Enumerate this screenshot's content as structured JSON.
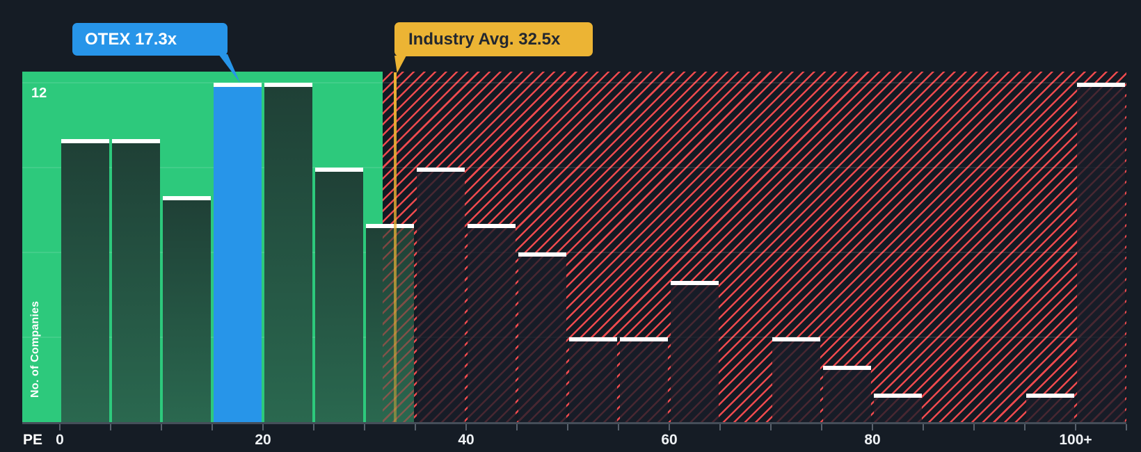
{
  "chart_data": {
    "type": "bar",
    "subtype": "histogram",
    "xlabel": "PE",
    "ylabel": "No. of Companies",
    "y_max_label": "12",
    "y_gridline_values": [
      3,
      6,
      9,
      12
    ],
    "ylim": [
      0,
      12.4
    ],
    "bin_size": 5,
    "grid": "faint horizontal",
    "x_ticks": [
      {
        "label": "0",
        "pe": 0
      },
      {
        "label": "20",
        "pe": 20
      },
      {
        "label": "40",
        "pe": 40
      },
      {
        "label": "60",
        "pe": 60
      },
      {
        "label": "80",
        "pe": 80
      },
      {
        "label": "100+",
        "pe": 100
      }
    ],
    "bins": [
      {
        "range": "0-5",
        "value": 10
      },
      {
        "range": "5-10",
        "value": 10
      },
      {
        "range": "10-15",
        "value": 8
      },
      {
        "range": "15-20",
        "value": 12,
        "highlight": "OTEX"
      },
      {
        "range": "20-25",
        "value": 12
      },
      {
        "range": "25-30",
        "value": 9
      },
      {
        "range": "30-35",
        "value": 7
      },
      {
        "range": "35-40",
        "value": 9
      },
      {
        "range": "40-45",
        "value": 7
      },
      {
        "range": "45-50",
        "value": 6
      },
      {
        "range": "50-55",
        "value": 3
      },
      {
        "range": "55-60",
        "value": 3
      },
      {
        "range": "60-65",
        "value": 5
      },
      {
        "range": "65-70",
        "value": 0
      },
      {
        "range": "70-75",
        "value": 3
      },
      {
        "range": "75-80",
        "value": 2
      },
      {
        "range": "80-85",
        "value": 1
      },
      {
        "range": "85-90",
        "value": 0
      },
      {
        "range": "90-95",
        "value": 0
      },
      {
        "range": "95-100",
        "value": 1
      },
      {
        "range": "100+",
        "value": 12
      }
    ],
    "markers": {
      "otex": {
        "label": "OTEX 17.3x",
        "pe": 17.3
      },
      "industry_avg": {
        "label": "Industry Avg. 32.5x",
        "pe": 32.5
      }
    },
    "zones": {
      "below_average": {
        "range": [
          0,
          32.5
        ],
        "style": "solid green"
      },
      "above_average": {
        "range": [
          32.5,
          105
        ],
        "style": "red diagonal hatch"
      }
    },
    "colors": {
      "background": "#151c25",
      "below_avg_zone": "#2dc97c",
      "bar_green_top": "#1f4036",
      "bar_green_bottom": "#2a684f",
      "otex_bar": "#2795e9",
      "bar_cap": "#ffffff",
      "above_avg_stripe": "#ee4a4e",
      "above_avg_bg": "#131a23",
      "above_avg_bar": "rgba(24,30,41,0.78)",
      "industry_marker": "#ecb434",
      "axis_text": "#eef1f4"
    }
  }
}
